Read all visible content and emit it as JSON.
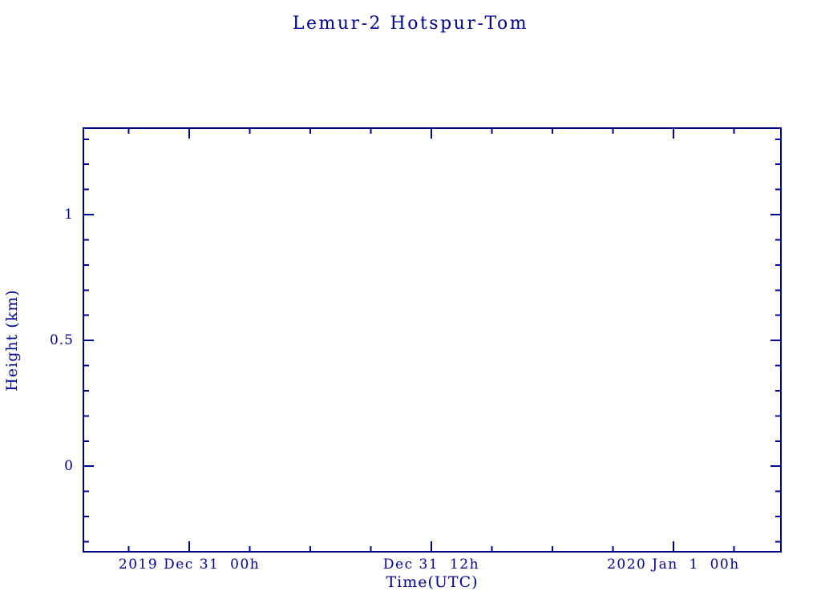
{
  "chart_data": {
    "type": "line",
    "title": "Lemur-2 Hotspur-Tom",
    "xlabel": "Time(UTC)",
    "ylabel": "Height (km)",
    "accent_color": "#00008B",
    "background_color": "#ffffff",
    "grid": false,
    "legend": false,
    "x_axis": {
      "description": "time, hours relative to 2019 Dec 31 00h UTC",
      "range_hours": [
        -5.25,
        29.33
      ],
      "major_ticks": [
        {
          "hours": 0,
          "label": "2019 Dec 31  00h"
        },
        {
          "hours": 12,
          "label": "Dec 31  12h"
        },
        {
          "hours": 24,
          "label": "2020 Jan  1  00h"
        }
      ],
      "minor_step_hours": 3
    },
    "y_axis": {
      "range": [
        -0.34,
        1.344
      ],
      "major_ticks": [
        {
          "value": 0,
          "label": "0"
        },
        {
          "value": 0.5,
          "label": "0.5"
        },
        {
          "value": 1,
          "label": "1"
        }
      ],
      "minor_step": 0.1
    },
    "series": []
  }
}
